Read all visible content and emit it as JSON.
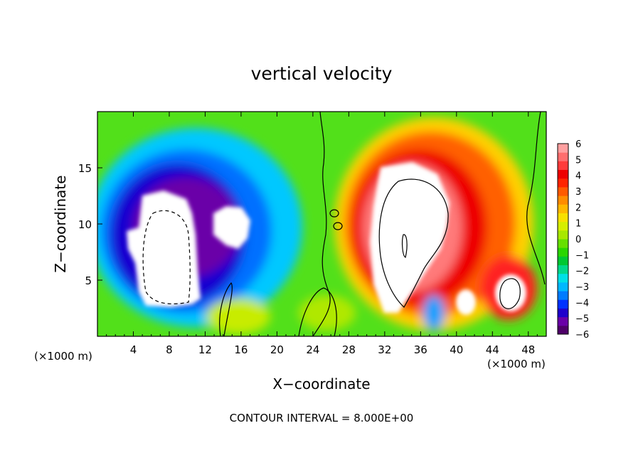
{
  "chart_data": {
    "type": "heatmap",
    "title": "vertical velocity",
    "xlabel": "X−coordinate",
    "ylabel": "Z−coordinate",
    "x_unit_left": "(×1000 m)",
    "x_unit_right": "(×1000 m)",
    "footer": "CONTOUR INTERVAL = 8.000E+00",
    "xlim": [
      0,
      50
    ],
    "ylim": [
      0,
      20
    ],
    "x_ticks": [
      4,
      8,
      12,
      16,
      20,
      24,
      28,
      32,
      36,
      40,
      44,
      48
    ],
    "y_ticks": [
      5,
      10,
      15
    ],
    "colorbar": {
      "min": -6,
      "max": 6,
      "tick_labels": [
        "6",
        "5",
        "4",
        "3",
        "2",
        "1",
        "0",
        "−1",
        "−2",
        "−3",
        "−4",
        "−5",
        "−6"
      ],
      "colors": [
        "#4f0069",
        "#6a00a8",
        "#1f00cc",
        "#0032ff",
        "#007bff",
        "#00b8ff",
        "#00e0e6",
        "#00d88a",
        "#00c832",
        "#2ad600",
        "#66e000",
        "#a8e800",
        "#d6ee00",
        "#f8e000",
        "#ffb800",
        "#ff8c00",
        "#ff5a00",
        "#ff2400",
        "#ee0000",
        "#ff3c3c",
        "#ff6e6e",
        "#ffa0a0"
      ]
    },
    "features": [
      {
        "kind": "downdraft",
        "x_range": [
          2,
          23
        ],
        "z_range": [
          2,
          17
        ],
        "peak": -6
      },
      {
        "kind": "updraft",
        "x_range": [
          28,
          50
        ],
        "z_range": [
          1,
          18
        ],
        "peak": 6
      },
      {
        "kind": "updraft",
        "x_range": [
          44,
          48
        ],
        "z_range": [
          2,
          6
        ],
        "peak": 6
      }
    ]
  }
}
